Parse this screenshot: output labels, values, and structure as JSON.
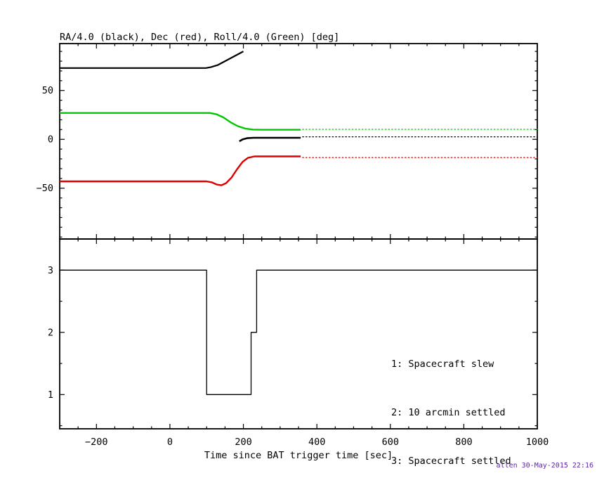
{
  "credit": {
    "text": "allen 30-May-2015 22:16",
    "color": "#5b1fa8"
  },
  "chart_data": [
    {
      "id": "attitude-panel",
      "type": "line",
      "title": "RA/4.0 (black), Dec (red), Roll/4.0 (Green) [deg]",
      "xlim": [
        -300,
        1000
      ],
      "ylim": [
        -102,
        98
      ],
      "xticks": [
        -200,
        0,
        200,
        400,
        600,
        800,
        1000
      ],
      "xtick_minor_step": 50,
      "yticks": [
        -50,
        0,
        50
      ],
      "ytick_minor_step": 10,
      "show_x_labels": false,
      "series": [
        {
          "name": "ra-quarter-pre-wrap",
          "color": "#000000",
          "width": 2.2,
          "points": [
            [
              -300,
              73
            ],
            [
              98,
              73
            ],
            [
              112,
              74
            ],
            [
              130,
              76
            ],
            [
              200,
              90
            ]
          ]
        },
        {
          "name": "ra-quarter-post-wrap",
          "color": "#000000",
          "width": 2.6,
          "points": [
            [
              189,
              -2
            ],
            [
              198,
              0
            ],
            [
              210,
              1.2
            ],
            [
              228,
              1.6
            ],
            [
              356,
              1.6
            ]
          ]
        },
        {
          "name": "ra-quarter-settled-dotted",
          "color": "#000000",
          "width": 1.3,
          "dash": "1.5,3.2",
          "points": [
            [
              361,
              2.6
            ],
            [
              1000,
              2.6
            ]
          ]
        },
        {
          "name": "roll-quarter",
          "color": "#00c800",
          "width": 2.4,
          "points": [
            [
              -300,
              27
            ],
            [
              108,
              27
            ],
            [
              126,
              25.8
            ],
            [
              145,
              22.5
            ],
            [
              165,
              17.5
            ],
            [
              185,
              13.5
            ],
            [
              205,
              11
            ],
            [
              225,
              10
            ],
            [
              250,
              9.8
            ],
            [
              356,
              9.8
            ]
          ]
        },
        {
          "name": "roll-quarter-settled-dotted",
          "color": "#00c800",
          "width": 1.3,
          "dash": "1.5,3.2",
          "points": [
            [
              361,
              10.2
            ],
            [
              1000,
              10.2
            ]
          ]
        },
        {
          "name": "dec",
          "color": "#dc0000",
          "width": 2.4,
          "points": [
            [
              -300,
              -43
            ],
            [
              100,
              -43
            ],
            [
              114,
              -44
            ],
            [
              128,
              -46.3
            ],
            [
              140,
              -47
            ],
            [
              153,
              -44.8
            ],
            [
              168,
              -39
            ],
            [
              183,
              -30.5
            ],
            [
              198,
              -23
            ],
            [
              213,
              -18.8
            ],
            [
              230,
              -17.5
            ],
            [
              356,
              -17.5
            ]
          ]
        },
        {
          "name": "dec-settled-dotted",
          "color": "#dc0000",
          "width": 1.3,
          "dash": "1.5,3.2",
          "points": [
            [
              361,
              -18.6
            ],
            [
              1000,
              -18.6
            ]
          ]
        }
      ]
    },
    {
      "id": "settled-panel",
      "type": "step",
      "xlabel": "Time since BAT trigger time [sec]",
      "xlim": [
        -300,
        1000
      ],
      "ylim": [
        0.45,
        3.5
      ],
      "xticks": [
        -200,
        0,
        200,
        400,
        600,
        800,
        1000
      ],
      "xtick_minor_step": 50,
      "yticks": [
        1,
        2,
        3
      ],
      "ytick_minor_step": 0.5,
      "show_x_labels": true,
      "legend": [
        "1: Spacecraft slew",
        "2: 10 arcmin settled",
        "3: Spacecraft settled"
      ],
      "series": [
        {
          "name": "settled-status",
          "color": "#000000",
          "width": 1.3,
          "points": [
            [
              -300,
              3
            ],
            [
              100,
              3
            ],
            [
              100,
              1
            ],
            [
              221,
              1
            ],
            [
              221,
              2
            ],
            [
              236,
              2
            ],
            [
              236,
              3
            ],
            [
              1000,
              3
            ]
          ]
        }
      ]
    }
  ]
}
